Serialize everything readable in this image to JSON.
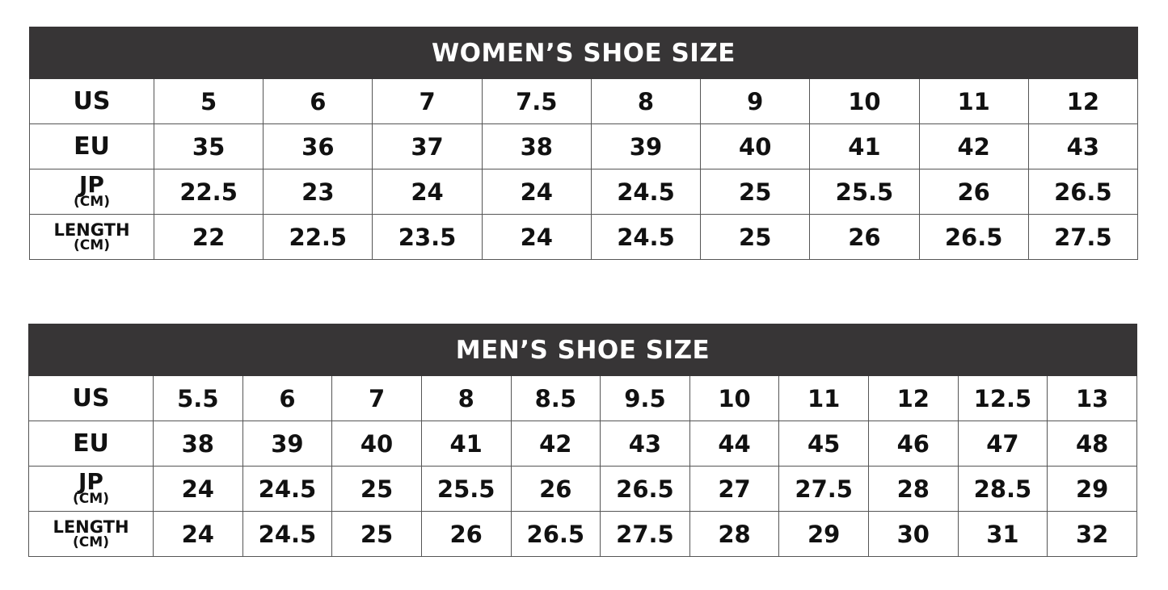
{
  "women": {
    "title": "WOMEN’S SHOE SIZE",
    "rows": [
      {
        "label": "US",
        "sub": "",
        "values": [
          "5",
          "6",
          "7",
          "7.5",
          "8",
          "9",
          "10",
          "11",
          "12"
        ]
      },
      {
        "label": "EU",
        "sub": "",
        "values": [
          "35",
          "36",
          "37",
          "38",
          "39",
          "40",
          "41",
          "42",
          "43"
        ]
      },
      {
        "label": "JP",
        "sub": "(CM)",
        "values": [
          "22.5",
          "23",
          "24",
          "24",
          "24.5",
          "25",
          "25.5",
          "26",
          "26.5"
        ]
      },
      {
        "label": "LENGTH",
        "sub": "(CM)",
        "values": [
          "22",
          "22.5",
          "23.5",
          "24",
          "24.5",
          "25",
          "26",
          "26.5",
          "27.5"
        ]
      }
    ]
  },
  "men": {
    "title": "MEN’S SHOE SIZE",
    "rows": [
      {
        "label": "US",
        "sub": "",
        "values": [
          "5.5",
          "6",
          "7",
          "8",
          "8.5",
          "9.5",
          "10",
          "11",
          "12",
          "12.5",
          "13"
        ]
      },
      {
        "label": "EU",
        "sub": "",
        "values": [
          "38",
          "39",
          "40",
          "41",
          "42",
          "43",
          "44",
          "45",
          "46",
          "47",
          "48"
        ]
      },
      {
        "label": "JP",
        "sub": "(CM)",
        "values": [
          "24",
          "24.5",
          "25",
          "25.5",
          "26",
          "26.5",
          "27",
          "27.5",
          "28",
          "28.5",
          "29"
        ]
      },
      {
        "label": "LENGTH",
        "sub": "(CM)",
        "values": [
          "24",
          "24.5",
          "25",
          "26",
          "26.5",
          "27.5",
          "28",
          "29",
          "30",
          "31",
          "32"
        ]
      }
    ]
  },
  "colors": {
    "header_bg": "#373536",
    "header_text": "#ffffff",
    "border": "#555555"
  }
}
